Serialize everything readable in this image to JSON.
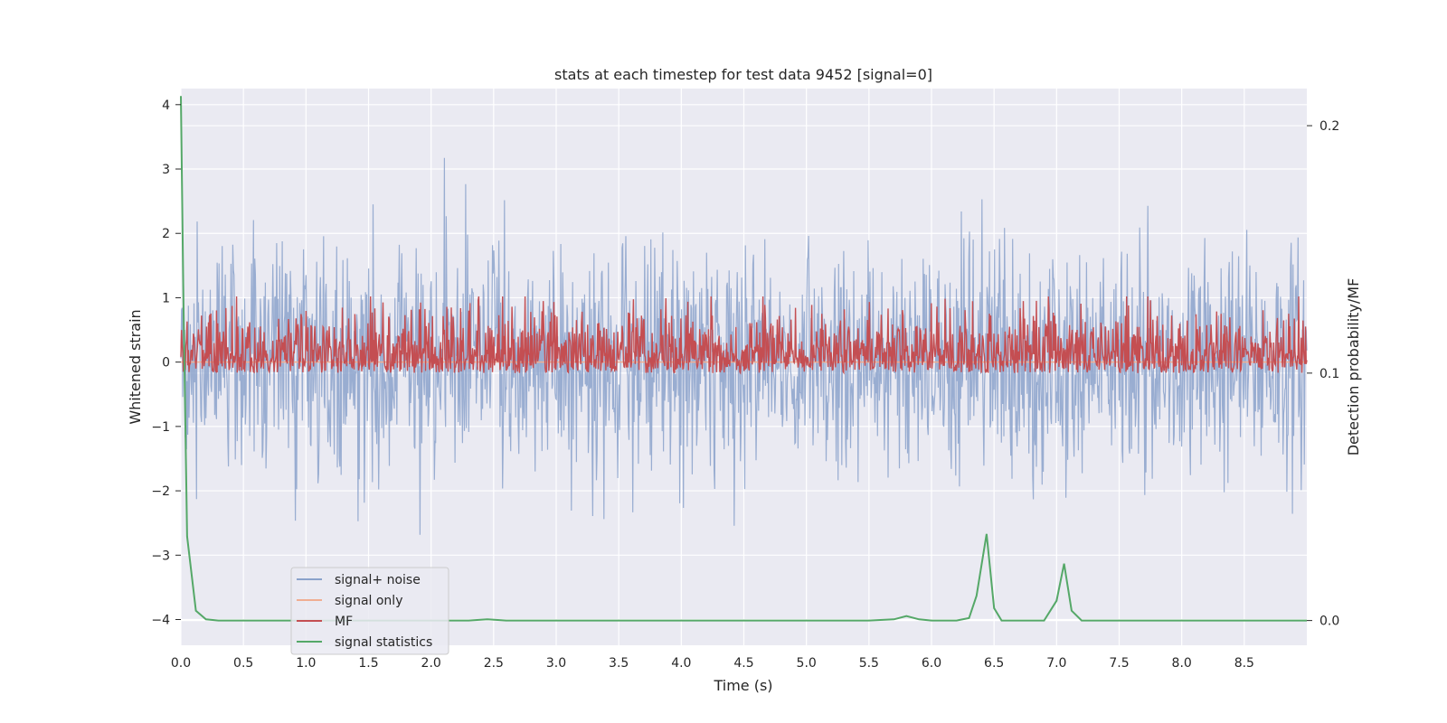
{
  "chart_data": {
    "type": "line",
    "title": "stats at each timestep for test data 9452 [signal=0]",
    "xlabel": "Time (s)",
    "ylabel": "Whitened strain",
    "ylabel_right": "Detection probability/MF",
    "xlim": [
      0,
      9
    ],
    "ylim": [
      -4.4,
      4.25
    ],
    "ylim_right": [
      -0.01,
      0.215
    ],
    "x_ticks": [
      0.0,
      0.5,
      1.0,
      1.5,
      2.0,
      2.5,
      3.0,
      3.5,
      4.0,
      4.5,
      5.0,
      5.5,
      6.0,
      6.5,
      7.0,
      7.5,
      8.0,
      8.5
    ],
    "x_tick_labels": [
      "0.0",
      "0.5",
      "1.0",
      "1.5",
      "2.0",
      "2.5",
      "3.0",
      "3.5",
      "4.0",
      "4.5",
      "5.0",
      "5.5",
      "6.0",
      "6.5",
      "7.0",
      "7.5",
      "8.0",
      "8.5"
    ],
    "y_ticks": [
      4,
      3,
      2,
      1,
      0,
      -1,
      -2,
      -3,
      -4
    ],
    "y_tick_labels": [
      "4",
      "3",
      "2",
      "1",
      "0",
      "−1",
      "−2",
      "−3",
      "−4"
    ],
    "y_ticks_right": [
      0.2,
      0.1,
      0.0
    ],
    "y_tick_labels_right": [
      "0.2",
      "0.1",
      "0.0"
    ],
    "legend_position": "lower-left",
    "grid": true,
    "series": [
      {
        "name": "signal+ noise",
        "axis": "left",
        "color": "#8ba2cb",
        "kind": "noise",
        "samples": 1800,
        "std": 0.9,
        "clip": [
          -4.0,
          3.9
        ]
      },
      {
        "name": "signal only",
        "axis": "left",
        "color": "#f0ae92",
        "x": [
          0,
          9
        ],
        "y": [
          0,
          0
        ]
      },
      {
        "name": "MF",
        "axis": "right",
        "color": "#c44e52",
        "kind": "noise",
        "samples": 1800,
        "mean": 0.111,
        "range": [
          0.1,
          0.12
        ],
        "max": 0.131
      },
      {
        "name": "signal statistics",
        "axis": "right",
        "color": "#55a868",
        "x": [
          0.0,
          0.02,
          0.05,
          0.12,
          0.2,
          0.3,
          1.0,
          1.5,
          2.0,
          2.3,
          2.45,
          2.6,
          3.0,
          4.0,
          5.0,
          5.5,
          5.7,
          5.8,
          5.9,
          6.0,
          6.2,
          6.3,
          6.36,
          6.44,
          6.5,
          6.56,
          6.7,
          6.9,
          7.0,
          7.06,
          7.12,
          7.2,
          7.5,
          8.0,
          8.5,
          9.0
        ],
        "y": [
          0.212,
          0.13,
          0.034,
          0.004,
          0.0005,
          0.0,
          0.0,
          0.0,
          0.0,
          0.0,
          0.0005,
          0.0,
          0.0,
          0.0,
          0.0,
          0.0,
          0.0005,
          0.0018,
          0.0005,
          0.0,
          0.0,
          0.001,
          0.01,
          0.035,
          0.005,
          0.0,
          0.0,
          0.0,
          0.008,
          0.023,
          0.004,
          0.0,
          0.0,
          0.0,
          0.0,
          0.0
        ]
      }
    ]
  }
}
